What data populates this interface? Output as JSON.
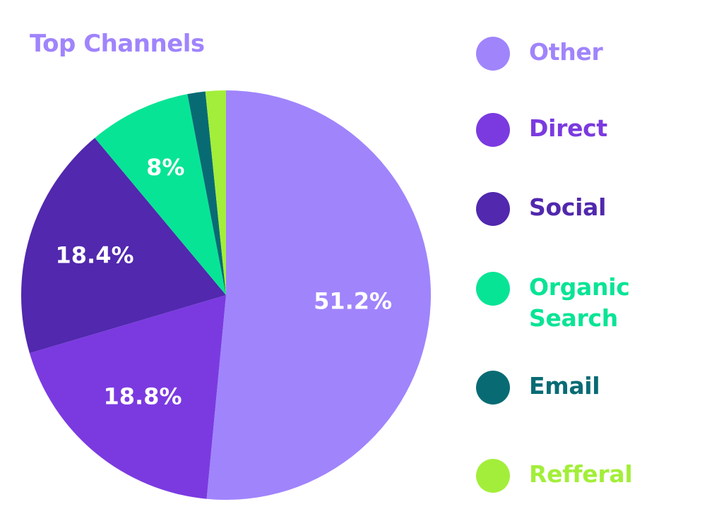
{
  "chart_data": {
    "type": "pie",
    "title": "Top Channels",
    "slices": [
      {
        "name": "Other",
        "value": 51.2,
        "label": "51.2%",
        "color": "#A084FC"
      },
      {
        "name": "Direct",
        "value": 18.8,
        "label": "18.8%",
        "color": "#7B3AE0"
      },
      {
        "name": "Social",
        "value": 18.4,
        "label": "18.4%",
        "color": "#5128AE"
      },
      {
        "name": "Organic Search",
        "value": 8,
        "label": "8%",
        "color": "#08E495"
      },
      {
        "name": "Email",
        "value": 1.4,
        "label": "",
        "color": "#086B74"
      },
      {
        "name": "Refferal",
        "value": 1.6,
        "label": "",
        "color": "#A3EE3A"
      }
    ],
    "legend_position": "right"
  },
  "colors": {
    "title": "#A084FC",
    "label_text": "#FFFFFF"
  }
}
